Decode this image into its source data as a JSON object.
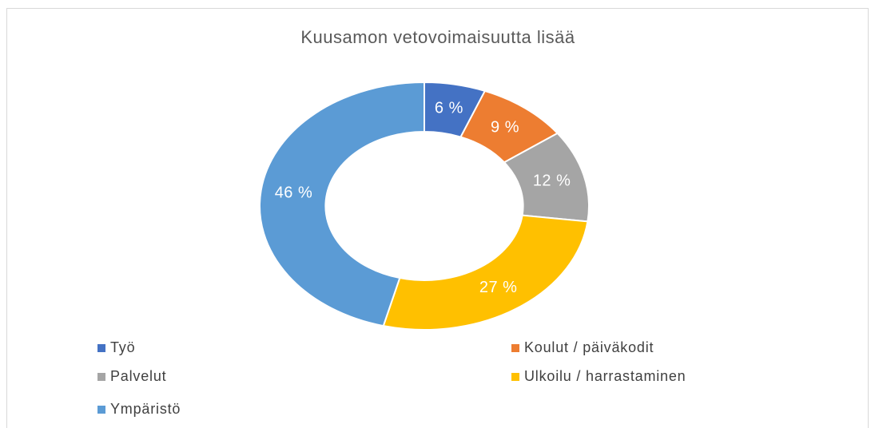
{
  "chart_data": {
    "type": "donut",
    "title": "Kuusamon vetovoimaisuutta lisää",
    "categories": [
      "Työ",
      "Koulut / päiväkodit",
      "Palvelut",
      "Ulkoilu / harrastaminen",
      "Ympäristö"
    ],
    "values": [
      6,
      9,
      12,
      27,
      46
    ],
    "value_labels": [
      "6 %",
      "9 %",
      "12 %",
      "27 %",
      "46 %"
    ],
    "colors": [
      "#4472c4",
      "#ed7d31",
      "#a5a5a5",
      "#ffc000",
      "#5b9bd5"
    ],
    "legend": "bottom"
  }
}
